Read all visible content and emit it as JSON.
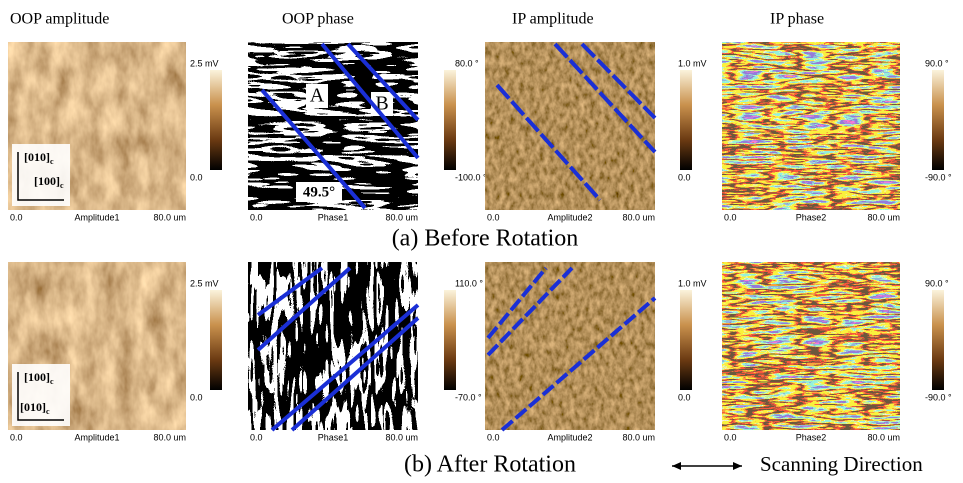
{
  "columns": [
    "OOP amplitude",
    "OOP phase",
    "IP amplitude",
    "IP phase"
  ],
  "rows": [
    {
      "caption": "(a) Before Rotation",
      "panels": [
        {
          "scale_max": "2.5 mV",
          "scale_min": "0.0",
          "axis_start": "0.0",
          "channel": "Amplitude1",
          "axis_end": "80.0 um"
        },
        {
          "scale_max": "80.0 °",
          "scale_min": "-100.0 °",
          "axis_start": "0.0",
          "channel": "Phase1",
          "axis_end": "80.0 um"
        },
        {
          "scale_max": "1.0 mV",
          "scale_min": "0.0",
          "axis_start": "0.0",
          "channel": "Amplitude2",
          "axis_end": "80.0 um"
        },
        {
          "scale_max": "90.0 °",
          "scale_min": "-90.0 °",
          "axis_start": "0.0",
          "channel": "Phase2",
          "axis_end": "80.0 um"
        }
      ],
      "directions": {
        "vertical": "[010]",
        "horizontal": "[100]",
        "subscript": "c"
      },
      "labels": {
        "domain_a": "A",
        "domain_b": "B",
        "angle": "49.5°"
      }
    },
    {
      "caption": "(b) After Rotation",
      "panels": [
        {
          "scale_max": "2.5 mV",
          "scale_min": "0.0",
          "axis_start": "0.0",
          "channel": "Amplitude1",
          "axis_end": "80.0 um"
        },
        {
          "scale_max": "110.0 °",
          "scale_min": "-70.0 °",
          "axis_start": "0.0",
          "channel": "Phase1",
          "axis_end": "80.0 um"
        },
        {
          "scale_max": "1.0 mV",
          "scale_min": "0.0",
          "axis_start": "0.0",
          "channel": "Amplitude2",
          "axis_end": "80.0 um"
        },
        {
          "scale_max": "90.0 °",
          "scale_min": "-90.0 °",
          "axis_start": "0.0",
          "channel": "Phase2",
          "axis_end": "80.0 um"
        }
      ],
      "directions": {
        "vertical": "[100]",
        "horizontal": "[010]",
        "subscript": "c"
      }
    }
  ],
  "legend": "Scanning Direction"
}
